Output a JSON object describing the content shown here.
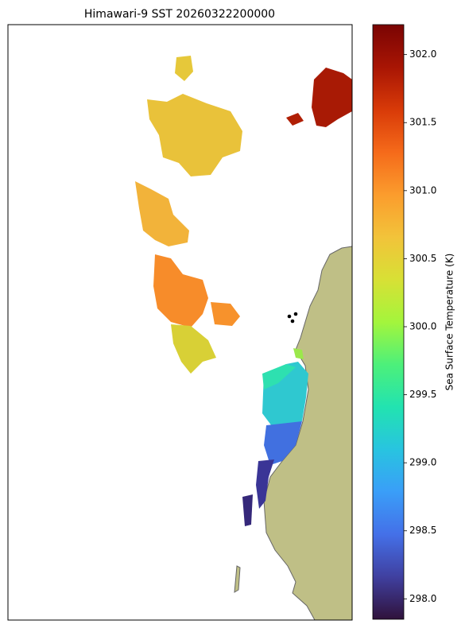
{
  "chart_data": {
    "type": "map",
    "title": "Himawari-9 SST 20260322200000",
    "colorbar": {
      "label": "Sea Surface Temperature (K)",
      "lim": [
        297.85,
        302.22
      ],
      "ticks": [
        {
          "value": 298.0,
          "label": "298.0"
        },
        {
          "value": 298.5,
          "label": "298.5"
        },
        {
          "value": 299.0,
          "label": "299.0"
        },
        {
          "value": 299.5,
          "label": "299.5"
        },
        {
          "value": 300.0,
          "label": "300.0"
        },
        {
          "value": 300.5,
          "label": "300.5"
        },
        {
          "value": 301.0,
          "label": "301.0"
        },
        {
          "value": 301.5,
          "label": "301.5"
        },
        {
          "value": 302.0,
          "label": "302.0"
        }
      ],
      "colors": [
        "#30123b",
        "#4040a0",
        "#4470e8",
        "#3a9ef8",
        "#28c4e0",
        "#22e3b0",
        "#4df07a",
        "#a4f53c",
        "#d8e035",
        "#f2c33a",
        "#fb9c2d",
        "#f56a1a",
        "#d83a08",
        "#a81504",
        "#7a0403"
      ]
    }
  }
}
